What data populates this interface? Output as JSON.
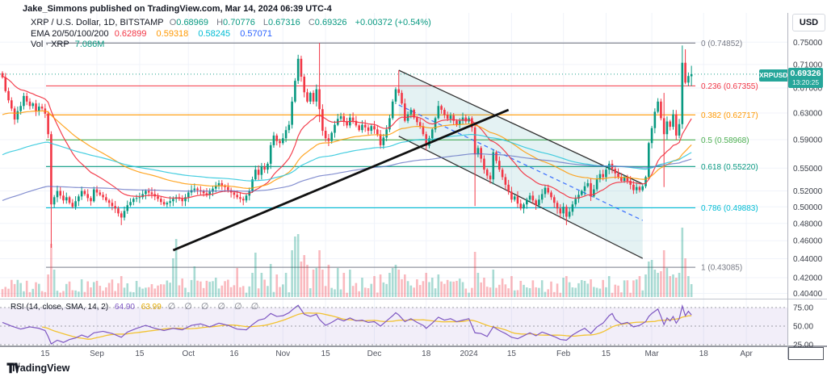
{
  "header": {
    "published_line": "Jake_Simmons published on TradingView.com, Mar 14, 2024 06:39 UTC-4"
  },
  "legend": {
    "symbol_line": "XRP / U.S. Dollar, 1D, BITSTAMP",
    "ohlc": {
      "o_label": "O",
      "o": "0.68969",
      "h_label": "H",
      "h": "0.70776",
      "l_label": "L",
      "l": "0.67316",
      "c_label": "C",
      "c": "0.69326",
      "change": "+0.00372 (+0.54%)"
    },
    "ema_label": "EMA 20/50/100/200",
    "ema_values": [
      {
        "value": "0.62899"
      },
      {
        "value": "0.59318"
      },
      {
        "value": "0.58245"
      },
      {
        "value": "0.57071"
      }
    ],
    "vol_label": "Vol · XRP",
    "vol_value": "7.086M"
  },
  "rsi_legend": {
    "label": "RSI (14, close, SMA, 14, 2)",
    "rsi_value": "64.90",
    "sma_value": "63.99",
    "empties": "∅ ∅ ∅ ∅ ∅ ∅"
  },
  "price_axis": {
    "currency": "USD",
    "symbol_tag": "XRPUSD",
    "last_price": "0.69326",
    "last_time": "13:20:25",
    "ticks": [
      {
        "label": "0.75000",
        "price": 0.75
      },
      {
        "label": "0.71000",
        "price": 0.71
      },
      {
        "label": "0.67000",
        "price": 0.67
      },
      {
        "label": "0.63000",
        "price": 0.63
      },
      {
        "label": "0.59000",
        "price": 0.59
      },
      {
        "label": "0.55000",
        "price": 0.55
      },
      {
        "label": "0.52000",
        "price": 0.52
      },
      {
        "label": "0.50000",
        "price": 0.5
      },
      {
        "label": "0.48000",
        "price": 0.48
      },
      {
        "label": "0.46000",
        "price": 0.46
      },
      {
        "label": "0.44000",
        "price": 0.44
      },
      {
        "label": "0.42000",
        "price": 0.42
      },
      {
        "label": "0.40400",
        "price": 0.404
      }
    ]
  },
  "time_axis": {
    "labels": [
      {
        "label": "15",
        "day": 14
      },
      {
        "label": "Sep",
        "day": 31
      },
      {
        "label": "15",
        "day": 45
      },
      {
        "label": "Oct",
        "day": 61
      },
      {
        "label": "16",
        "day": 76
      },
      {
        "label": "Nov",
        "day": 92
      },
      {
        "label": "15",
        "day": 106
      },
      {
        "label": "Dec",
        "day": 122
      },
      {
        "label": "18",
        "day": 139
      },
      {
        "label": "2024",
        "day": 153
      },
      {
        "label": "15",
        "day": 167
      },
      {
        "label": "Feb",
        "day": 184
      },
      {
        "label": "15",
        "day": 198
      },
      {
        "label": "Mar",
        "day": 213
      },
      {
        "label": "18",
        "day": 230
      },
      {
        "label": "Apr",
        "day": 244
      }
    ]
  },
  "rsi_axis": {
    "ticks": [
      {
        "label": "75.00",
        "value": 75
      },
      {
        "label": "50.00",
        "value": 50
      },
      {
        "label": "25.00",
        "value": 25
      }
    ]
  },
  "footer": {
    "brand": "TradingView"
  },
  "chart_data": {
    "type": "candlestick",
    "title": "XRP / U.S. Dollar, 1D, BITSTAMP",
    "interval": "1D",
    "start_date": "2023-08-01",
    "scale": "log",
    "price_range": [
      0.404,
      0.77
    ],
    "last_candle": {
      "o": 0.68969,
      "h": 0.70776,
      "l": 0.67316,
      "c": 0.69326,
      "change": 0.00372,
      "change_pct": 0.54
    },
    "closes": [
      0.688,
      0.665,
      0.65,
      0.637,
      0.62,
      0.633,
      0.641,
      0.657,
      0.648,
      0.641,
      0.645,
      0.633,
      0.64,
      0.637,
      0.629,
      0.598,
      0.503,
      0.512,
      0.52,
      0.514,
      0.508,
      0.512,
      0.505,
      0.5,
      0.507,
      0.513,
      0.52,
      0.516,
      0.511,
      0.507,
      0.522,
      0.518,
      0.515,
      0.512,
      0.508,
      0.505,
      0.501,
      0.498,
      0.492,
      0.487,
      0.495,
      0.502,
      0.506,
      0.51,
      0.511,
      0.512,
      0.516,
      0.52,
      0.518,
      0.516,
      0.513,
      0.51,
      0.506,
      0.503,
      0.505,
      0.507,
      0.51,
      0.512,
      0.51,
      0.507,
      0.512,
      0.518,
      0.521,
      0.523,
      0.521,
      0.52,
      0.517,
      0.515,
      0.519,
      0.523,
      0.527,
      0.53,
      0.527,
      0.525,
      0.521,
      0.518,
      0.515,
      0.512,
      0.51,
      0.508,
      0.514,
      0.52,
      0.535,
      0.548,
      0.541,
      0.552,
      0.548,
      0.556,
      0.582,
      0.596,
      0.588,
      0.585,
      0.592,
      0.604,
      0.612,
      0.648,
      0.682,
      0.72,
      0.689,
      0.663,
      0.648,
      0.662,
      0.648,
      0.668,
      0.636,
      0.603,
      0.592,
      0.588,
      0.6,
      0.612,
      0.621,
      0.625,
      0.617,
      0.611,
      0.623,
      0.618,
      0.611,
      0.604,
      0.612,
      0.608,
      0.603,
      0.61,
      0.605,
      0.598,
      0.582,
      0.593,
      0.605,
      0.622,
      0.648,
      0.668,
      0.662,
      0.645,
      0.618,
      0.628,
      0.635,
      0.623,
      0.616,
      0.61,
      0.598,
      0.581,
      0.592,
      0.605,
      0.622,
      0.641,
      0.635,
      0.627,
      0.621,
      0.626,
      0.618,
      0.612,
      0.618,
      0.623,
      0.617,
      0.622,
      0.608,
      0.569,
      0.578,
      0.563,
      0.548,
      0.54,
      0.535,
      0.572,
      0.56,
      0.548,
      0.538,
      0.528,
      0.519,
      0.509,
      0.513,
      0.504,
      0.498,
      0.503,
      0.509,
      0.514,
      0.508,
      0.502,
      0.509,
      0.516,
      0.524,
      0.518,
      0.512,
      0.505,
      0.498,
      0.492,
      0.5,
      0.488,
      0.494,
      0.503,
      0.51,
      0.515,
      0.52,
      0.526,
      0.53,
      0.513,
      0.522,
      0.535,
      0.542,
      0.538,
      0.548,
      0.556,
      0.549,
      0.543,
      0.538,
      0.533,
      0.538,
      0.533,
      0.528,
      0.521,
      0.525,
      0.521,
      0.526,
      0.538,
      0.585,
      0.607,
      0.632,
      0.648,
      0.622,
      0.598,
      0.617,
      0.609,
      0.628,
      0.596,
      0.613,
      0.713,
      0.679,
      0.69,
      0.69326
    ],
    "ohlc_overrides": {
      "16": {
        "l": 0.452
      },
      "39": {
        "l": 0.478
      },
      "97": {
        "h": 0.7272
      },
      "104": {
        "h": 0.74852,
        "l": 0.616
      },
      "130": {
        "h": 0.7
      },
      "155": {
        "l": 0.501
      },
      "185": {
        "l": 0.478
      },
      "212": {
        "l": 0.535
      },
      "217": {
        "h": 0.662,
        "l": 0.525
      },
      "223": {
        "h": 0.744,
        "l": 0.606
      },
      "224": {
        "h": 0.737
      },
      "226": {
        "o": 0.68969,
        "h": 0.70776,
        "l": 0.67316
      }
    },
    "volume_last_m": 7.086,
    "volume_spikes": {
      "15": 28,
      "16": 66,
      "17": 34,
      "26": 22,
      "39": 26,
      "44": 20,
      "56": 48,
      "57": 72,
      "63": 38,
      "70": 24,
      "77": 36,
      "82": 30,
      "83": 55,
      "85": 30,
      "88": 41,
      "90": 28,
      "93": 30,
      "95": 58,
      "96": 75,
      "97": 78,
      "98": 44,
      "99": 52,
      "100": 40,
      "102": 34,
      "103": 36,
      "104": 58,
      "105": 34,
      "107": 40,
      "110": 36,
      "112": 30,
      "114": 34,
      "118": 24,
      "122": 26,
      "124": 28,
      "127": 30,
      "128": 36,
      "129": 40,
      "130": 34,
      "132": 28,
      "136": 22,
      "139": 30,
      "141": 24,
      "143": 28,
      "155": 56,
      "156": 30,
      "158": 24,
      "161": 34,
      "167": 26,
      "184": 24,
      "185": 26,
      "193": 22,
      "199": 26,
      "209": 26,
      "211": 28,
      "212": 44,
      "213": 46,
      "214": 34,
      "215": 30,
      "216": 32,
      "217": 58,
      "218": 36,
      "219": 26,
      "220": 28,
      "221": 24,
      "222": 30,
      "223": 86,
      "224": 48,
      "225": 26,
      "226": 16
    },
    "emas": [
      {
        "period": 20,
        "seed": 0.69,
        "color": "#f23645",
        "opacity": 0.95,
        "legend": 0.62899
      },
      {
        "period": 50,
        "seed": 0.625,
        "color": "#ff9800",
        "opacity": 0.85,
        "legend": 0.59318
      },
      {
        "period": 100,
        "seed": 0.566,
        "color": "#26c6da",
        "opacity": 0.85,
        "legend": 0.58245
      },
      {
        "period": 200,
        "seed": 0.506,
        "color": "#5c6bc0",
        "opacity": 0.75,
        "legend": 0.57071
      }
    ],
    "fib_levels": [
      {
        "level": "0",
        "price": 0.74852,
        "color": "#787b86"
      },
      {
        "level": "0.236",
        "price": 0.67355,
        "color": "#f23645"
      },
      {
        "level": "0.382",
        "price": 0.62717,
        "color": "#ff9800"
      },
      {
        "level": "0.5",
        "price": 0.58968,
        "color": "#4caf50"
      },
      {
        "level": "0.618",
        "price": 0.5522,
        "color": "#089981"
      },
      {
        "level": "0.786",
        "price": 0.49883,
        "color": "#00bcd4"
      },
      {
        "level": "1",
        "price": 0.43085,
        "color": "#787b86"
      }
    ],
    "fib_day_range": [
      14.3,
      227.3
    ],
    "current_price_line": {
      "price": 0.69326,
      "color": "#089981"
    },
    "trendlines": [
      {
        "name": "ascending-support-line",
        "d1": 56,
        "p1": 0.4493,
        "d2": 166,
        "p2": 0.635,
        "color": "#111111",
        "width": 2.8
      }
    ],
    "channel": {
      "d1": 130,
      "top1": 0.7,
      "bot1": 0.595,
      "d2": 210,
      "top2": 0.529,
      "bot2": 0.4404,
      "line_color": "#333333",
      "line_width": 1.3,
      "fill": "rgba(34,150,160,0.12)",
      "mid_dash": {
        "p1": 0.6426,
        "p2": 0.4836,
        "color": "#2962ff"
      }
    },
    "rsi": {
      "period": 14,
      "sma_period": 14,
      "bands": [
        75,
        50,
        25
      ],
      "last": 64.9,
      "sma_last": 63.99,
      "line_color": "#7e57c2",
      "sma_color": "#f2c230",
      "band_fill": "rgba(126,87,194,0.10)",
      "over_fill": "rgba(76,175,80,0.28)",
      "anchors": [
        [
          0,
          55
        ],
        [
          3,
          50
        ],
        [
          6,
          46
        ],
        [
          9,
          49
        ],
        [
          12,
          47
        ],
        [
          14,
          44
        ],
        [
          15,
          36
        ],
        [
          16,
          26
        ],
        [
          18,
          31
        ],
        [
          20,
          28
        ],
        [
          22,
          32
        ],
        [
          24,
          34
        ],
        [
          26,
          38
        ],
        [
          28,
          35
        ],
        [
          30,
          41
        ],
        [
          33,
          43
        ],
        [
          36,
          40
        ],
        [
          39,
          35
        ],
        [
          41,
          42
        ],
        [
          44,
          47
        ],
        [
          47,
          51
        ],
        [
          50,
          47
        ],
        [
          53,
          44
        ],
        [
          56,
          47
        ],
        [
          59,
          45
        ],
        [
          62,
          51
        ],
        [
          65,
          53
        ],
        [
          68,
          49
        ],
        [
          71,
          54
        ],
        [
          74,
          51
        ],
        [
          77,
          46
        ],
        [
          80,
          45
        ],
        [
          82,
          52
        ],
        [
          84,
          58
        ],
        [
          86,
          60
        ],
        [
          88,
          67
        ],
        [
          90,
          63
        ],
        [
          92,
          64
        ],
        [
          94,
          68
        ],
        [
          96,
          75
        ],
        [
          97,
          78
        ],
        [
          99,
          66
        ],
        [
          101,
          63
        ],
        [
          103,
          66
        ],
        [
          104,
          59
        ],
        [
          106,
          51
        ],
        [
          108,
          55
        ],
        [
          110,
          60
        ],
        [
          112,
          57
        ],
        [
          114,
          61
        ],
        [
          116,
          57
        ],
        [
          118,
          58
        ],
        [
          120,
          55
        ],
        [
          122,
          56
        ],
        [
          124,
          50
        ],
        [
          126,
          57
        ],
        [
          128,
          64
        ],
        [
          129,
          68
        ],
        [
          130,
          65
        ],
        [
          132,
          56
        ],
        [
          134,
          60
        ],
        [
          136,
          55
        ],
        [
          138,
          51
        ],
        [
          139,
          47
        ],
        [
          141,
          54
        ],
        [
          143,
          62
        ],
        [
          145,
          58
        ],
        [
          147,
          60
        ],
        [
          149,
          56
        ],
        [
          151,
          58
        ],
        [
          153,
          60
        ],
        [
          155,
          41
        ],
        [
          157,
          40
        ],
        [
          159,
          36
        ],
        [
          161,
          49
        ],
        [
          163,
          44
        ],
        [
          165,
          40
        ],
        [
          167,
          35
        ],
        [
          169,
          33
        ],
        [
          171,
          37
        ],
        [
          173,
          41
        ],
        [
          175,
          37
        ],
        [
          177,
          42
        ],
        [
          179,
          39
        ],
        [
          181,
          36
        ],
        [
          183,
          32
        ],
        [
          185,
          31
        ],
        [
          187,
          38
        ],
        [
          189,
          43
        ],
        [
          191,
          47
        ],
        [
          193,
          40
        ],
        [
          195,
          49
        ],
        [
          197,
          54
        ],
        [
          199,
          64
        ],
        [
          200,
          67
        ],
        [
          201,
          59
        ],
        [
          203,
          53
        ],
        [
          205,
          55
        ],
        [
          207,
          49
        ],
        [
          209,
          51
        ],
        [
          211,
          56
        ],
        [
          212,
          63
        ],
        [
          213,
          67
        ],
        [
          214,
          70
        ],
        [
          215,
          73
        ],
        [
          216,
          63
        ],
        [
          217,
          52
        ],
        [
          218,
          61
        ],
        [
          219,
          57
        ],
        [
          220,
          63
        ],
        [
          221,
          54
        ],
        [
          222,
          60
        ],
        [
          223,
          77
        ],
        [
          224,
          64
        ],
        [
          225,
          70
        ],
        [
          226,
          64.9
        ]
      ]
    },
    "colors": {
      "up": "#089981",
      "down": "#f23645",
      "grid": "#f0f3fa",
      "axis_text": "#3a3e47",
      "volume_up": "rgba(8,153,129,0.35)",
      "volume_down": "rgba(242,54,69,0.35)",
      "divider": "#c2c6ce",
      "axis_line": "#787b86",
      "axis_vline": "#b2b5be"
    }
  }
}
